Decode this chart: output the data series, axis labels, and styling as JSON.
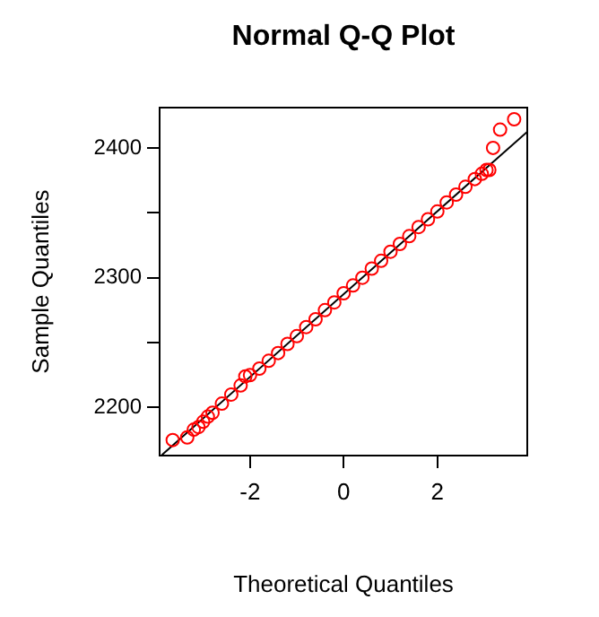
{
  "chart_data": {
    "type": "scatter",
    "title": "Normal Q-Q Plot",
    "xlabel": "Theoretical Quantiles",
    "ylabel": "Sample Quantiles",
    "marker": "circle",
    "grid": false,
    "xlim": [
      -3.93,
      3.92
    ],
    "ylim": [
      2163,
      2431
    ],
    "xticks": [
      -2,
      0,
      2
    ],
    "yticks": [
      2200,
      {
        "value": 2250,
        "label": null
      },
      2300,
      {
        "value": 2350,
        "label": null
      },
      2400
    ],
    "series": [
      {
        "color": "#ff0000",
        "x": [
          -3.65,
          -3.34,
          -3.2,
          -3.1,
          -3.0,
          -2.9,
          -2.8,
          -2.6,
          -2.4,
          -2.2,
          -2.1,
          -2.0,
          -1.8,
          -1.6,
          -1.4,
          -1.2,
          -1.0,
          -0.8,
          -0.6,
          -0.4,
          -0.2,
          0,
          0.2,
          0.4,
          0.6,
          0.8,
          1.0,
          1.2,
          1.4,
          1.6,
          1.8,
          2.0,
          2.2,
          2.4,
          2.6,
          2.8,
          2.95,
          3.05,
          3.11,
          3.19,
          3.34,
          3.64
        ],
        "values": [
          2175,
          2177,
          2183,
          2185,
          2189,
          2193,
          2196,
          2203,
          2210,
          2217,
          2224,
          2225,
          2230,
          2236,
          2242,
          2249,
          2255,
          2262,
          2268,
          2275,
          2281,
          2288,
          2294,
          2300,
          2307,
          2313,
          2320,
          2326,
          2332,
          2339,
          2345,
          2351,
          2358,
          2364,
          2370,
          2376,
          2380,
          2383,
          2383,
          2400,
          2414,
          2422
        ]
      },
      {
        "type": "line",
        "color": "#000000",
        "marker": "none",
        "x": [
          -3.88,
          3.92
        ],
        "values": [
          2163.6,
          2412.4
        ]
      }
    ]
  }
}
